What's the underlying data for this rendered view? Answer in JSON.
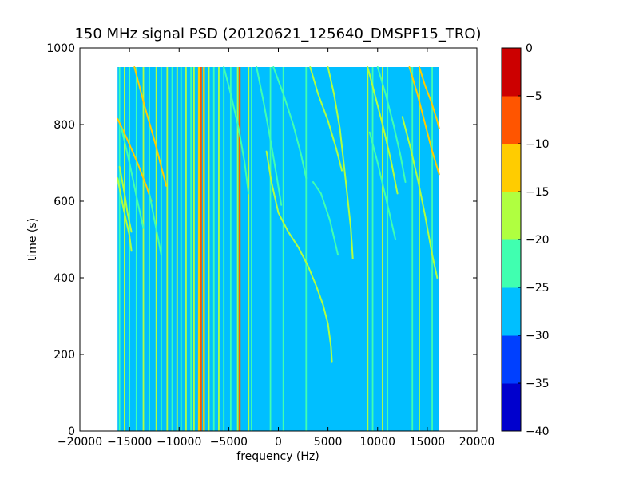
{
  "chart_data": {
    "type": "heatmap",
    "title": "150 MHz signal PSD (20120621_125640_DMSPF15_TRO)",
    "xlabel": "frequency (Hz)",
    "ylabel": "time (s)",
    "xlim": [
      -20000,
      20000
    ],
    "ylim": [
      0,
      1000
    ],
    "x_ticks": [
      "−20000",
      "−15000",
      "−10000",
      "−5000",
      "0",
      "5000",
      "10000",
      "15000",
      "20000"
    ],
    "y_ticks": [
      "0",
      "200",
      "400",
      "600",
      "800",
      "1000"
    ],
    "data_extent": {
      "x": [
        -16200,
        16200
      ],
      "y": [
        0,
        950
      ]
    },
    "background_value": -27.5,
    "colorbar": {
      "levels": [
        -40,
        -35,
        -30,
        -25,
        -20,
        -15,
        -10,
        -5,
        0
      ],
      "tick_labels": [
        "−40",
        "−35",
        "−30",
        "−25",
        "−20",
        "−15",
        "−10",
        "−5",
        "0"
      ],
      "colors": [
        "#0000cd",
        "#0040ff",
        "#00bfff",
        "#40ffb0",
        "#b0ff40",
        "#ffcc00",
        "#ff5500",
        "#cc0000"
      ]
    },
    "vertical_lines": [
      {
        "x": -16000,
        "level": -22.5
      },
      {
        "x": -15500,
        "level": -17.5
      },
      {
        "x": -15000,
        "level": -22.5
      },
      {
        "x": -14300,
        "level": -22.5
      },
      {
        "x": -13600,
        "level": -17.5
      },
      {
        "x": -13000,
        "level": -22.5
      },
      {
        "x": -12300,
        "level": -17.5
      },
      {
        "x": -11800,
        "level": -22.5
      },
      {
        "x": -11200,
        "level": -17.5
      },
      {
        "x": -10700,
        "level": -22.5
      },
      {
        "x": -10200,
        "level": -17.5
      },
      {
        "x": -9800,
        "level": -22.5
      },
      {
        "x": -9300,
        "level": -17.5
      },
      {
        "x": -8800,
        "level": -22.5
      },
      {
        "x": -8500,
        "level": -17.5
      },
      {
        "x": -8000,
        "level": -12.5
      },
      {
        "x": -7800,
        "level": -7.5
      },
      {
        "x": -7500,
        "level": -12.5
      },
      {
        "x": -7000,
        "level": -17.5
      },
      {
        "x": -6500,
        "level": -22.5
      },
      {
        "x": -6000,
        "level": -17.5
      },
      {
        "x": -5500,
        "level": -22.5
      },
      {
        "x": -4800,
        "level": -22.5
      },
      {
        "x": -4100,
        "level": -17.5
      },
      {
        "x": -3900,
        "level": -7.5
      },
      {
        "x": -3000,
        "level": -17.5
      },
      {
        "x": -2700,
        "level": -22.5
      },
      {
        "x": -800,
        "level": -22.5
      },
      {
        "x": 500,
        "level": -22.5
      },
      {
        "x": 2800,
        "level": -22.5
      },
      {
        "x": 9000,
        "level": -17.5
      },
      {
        "x": 9500,
        "level": -22.5
      },
      {
        "x": 10500,
        "level": -17.5
      },
      {
        "x": 11000,
        "level": -22.5
      },
      {
        "x": 13500,
        "level": -22.5
      },
      {
        "x": 14200,
        "level": -17.5
      },
      {
        "x": 15500,
        "level": -22.5
      }
    ],
    "curves": [
      {
        "level": -12.5,
        "points": [
          [
            -14500,
            950
          ],
          [
            -13500,
            850
          ],
          [
            -12500,
            760
          ],
          [
            -11800,
            690
          ],
          [
            -11300,
            640
          ]
        ]
      },
      {
        "level": -12.5,
        "points": [
          [
            -16200,
            815
          ],
          [
            -15200,
            760
          ],
          [
            -14200,
            700
          ],
          [
            -13300,
            640
          ],
          [
            -12800,
            600
          ]
        ]
      },
      {
        "level": -17.5,
        "points": [
          [
            -16000,
            690
          ],
          [
            -15500,
            620
          ],
          [
            -15200,
            570
          ],
          [
            -14800,
            520
          ]
        ]
      },
      {
        "level": -22.5,
        "points": [
          [
            -15800,
            790
          ],
          [
            -15000,
            700
          ],
          [
            -14200,
            600
          ],
          [
            -13600,
            530
          ]
        ]
      },
      {
        "level": -17.5,
        "points": [
          [
            -16200,
            660
          ],
          [
            -15600,
            580
          ],
          [
            -15000,
            510
          ],
          [
            -14800,
            470
          ]
        ]
      },
      {
        "level": -22.5,
        "points": [
          [
            -13000,
            620
          ],
          [
            -12400,
            540
          ],
          [
            -11800,
            460
          ]
        ]
      },
      {
        "level": -22.5,
        "points": [
          [
            -5500,
            950
          ],
          [
            -4800,
            880
          ],
          [
            -4000,
            790
          ],
          [
            -3400,
            700
          ],
          [
            -3000,
            620
          ]
        ]
      },
      {
        "level": -22.5,
        "points": [
          [
            -2200,
            950
          ],
          [
            -1500,
            860
          ],
          [
            -800,
            760
          ],
          [
            -200,
            670
          ],
          [
            300,
            590
          ]
        ]
      },
      {
        "level": -22.5,
        "points": [
          [
            -500,
            950
          ],
          [
            500,
            880
          ],
          [
            1500,
            800
          ],
          [
            2300,
            720
          ],
          [
            2800,
            660
          ]
        ]
      },
      {
        "level": -17.5,
        "points": [
          [
            -1200,
            730
          ],
          [
            -700,
            650
          ],
          [
            0,
            570
          ],
          [
            1000,
            520
          ],
          [
            2000,
            480
          ],
          [
            3000,
            430
          ],
          [
            3800,
            380
          ],
          [
            4500,
            330
          ],
          [
            5000,
            280
          ],
          [
            5300,
            220
          ],
          [
            5400,
            180
          ]
        ]
      },
      {
        "level": -17.5,
        "points": [
          [
            3200,
            950
          ],
          [
            4000,
            880
          ],
          [
            5000,
            810
          ],
          [
            5800,
            740
          ],
          [
            6400,
            680
          ]
        ]
      },
      {
        "level": -17.5,
        "points": [
          [
            5000,
            950
          ],
          [
            5600,
            880
          ],
          [
            6200,
            790
          ],
          [
            6800,
            650
          ],
          [
            7300,
            530
          ],
          [
            7500,
            450
          ]
        ]
      },
      {
        "level": -22.5,
        "points": [
          [
            3500,
            650
          ],
          [
            4300,
            620
          ],
          [
            5200,
            550
          ],
          [
            6000,
            460
          ]
        ]
      },
      {
        "level": -17.5,
        "points": [
          [
            9000,
            950
          ],
          [
            9800,
            870
          ],
          [
            10600,
            790
          ],
          [
            11400,
            700
          ],
          [
            12000,
            620
          ]
        ]
      },
      {
        "level": -22.5,
        "points": [
          [
            10000,
            950
          ],
          [
            10800,
            880
          ],
          [
            11600,
            800
          ],
          [
            12300,
            720
          ],
          [
            12800,
            650
          ]
        ]
      },
      {
        "level": -22.5,
        "points": [
          [
            9200,
            780
          ],
          [
            10000,
            700
          ],
          [
            11000,
            590
          ],
          [
            11800,
            500
          ]
        ]
      },
      {
        "level": -12.5,
        "points": [
          [
            13200,
            950
          ],
          [
            14000,
            880
          ],
          [
            14800,
            800
          ],
          [
            15500,
            730
          ],
          [
            16200,
            670
          ]
        ]
      },
      {
        "level": -12.5,
        "points": [
          [
            14200,
            950
          ],
          [
            14800,
            900
          ],
          [
            15400,
            860
          ],
          [
            16000,
            810
          ],
          [
            16200,
            790
          ]
        ]
      },
      {
        "level": -17.5,
        "points": [
          [
            12500,
            820
          ],
          [
            13300,
            740
          ],
          [
            14100,
            650
          ],
          [
            14800,
            560
          ],
          [
            15500,
            460
          ],
          [
            16000,
            400
          ]
        ]
      }
    ]
  }
}
